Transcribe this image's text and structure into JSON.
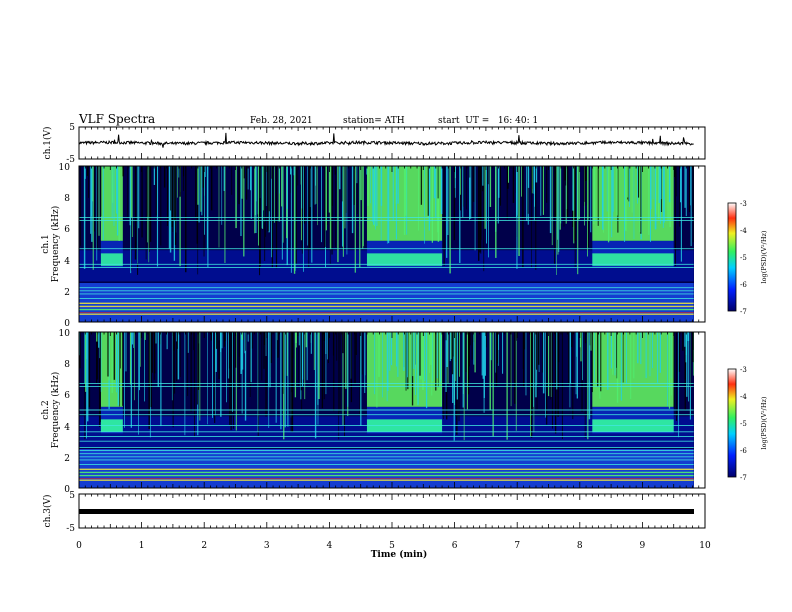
{
  "header": {
    "title": "VLF Spectra",
    "date": "Feb. 28, 2021",
    "station": "station= ATH",
    "start_ut": "start  UT =   16: 40: 1"
  },
  "chart_data": [
    {
      "id": "ch1-waveform",
      "type": "line",
      "ylabel": "ch.1(V)",
      "ylim": [
        -5,
        5
      ],
      "yticks": [
        "5",
        "-5"
      ],
      "xlim": [
        0,
        10
      ],
      "note": "broadband waveform trace near 0 V"
    },
    {
      "id": "ch1-spectrogram",
      "type": "heatmap",
      "ylabel": "ch.1 Frequency (kHz)",
      "ylabel_lines": [
        "ch.1",
        "Frequency (kHz)"
      ],
      "ylim": [
        0,
        10
      ],
      "yticks": [
        "0",
        "2",
        "4",
        "6",
        "8",
        "10"
      ],
      "xlim": [
        0,
        10
      ],
      "colorbar": {
        "label": "log(PSD)(V²/Hz)",
        "range": [
          -7,
          -3
        ],
        "ticks": [
          "-3",
          "-4",
          "-5",
          "-6",
          "-7"
        ]
      },
      "hiss_bursts_min": [
        [
          0.35,
          0.7
        ],
        [
          4.6,
          5.8
        ],
        [
          8.2,
          9.5
        ]
      ],
      "band_lines_khz": [
        0.5,
        0.8,
        1.0,
        1.2,
        1.5,
        1.8,
        2.0,
        2.2,
        3.5,
        3.7,
        4.7,
        6.5,
        6.7
      ]
    },
    {
      "id": "ch2-spectrogram",
      "type": "heatmap",
      "ylabel": "ch.2 Frequency (kHz)",
      "ylabel_lines": [
        "ch.2",
        "Frequency (kHz)"
      ],
      "ylim": [
        0,
        10
      ],
      "yticks": [
        "0",
        "2",
        "4",
        "6",
        "8",
        "10"
      ],
      "xlim": [
        0,
        10
      ],
      "colorbar": {
        "label": "log(PSD)(V²/Hz)",
        "range": [
          -7,
          -3
        ],
        "ticks": [
          "-3",
          "-4",
          "-5",
          "-6",
          "-7"
        ]
      },
      "hiss_bursts_min": [
        [
          0.35,
          0.7
        ],
        [
          4.6,
          5.8
        ],
        [
          8.2,
          9.5
        ]
      ],
      "band_lines_khz": [
        0.5,
        0.8,
        1.0,
        1.2,
        1.5,
        1.8,
        2.0,
        2.2,
        2.4,
        2.6,
        3.0,
        3.3,
        3.6,
        4.0,
        4.7,
        5.0,
        6.5,
        6.7
      ]
    },
    {
      "id": "ch3-waveform",
      "type": "line",
      "ylabel": "ch.3(V)",
      "ylim": [
        -5,
        5
      ],
      "yticks": [
        "5",
        "-5"
      ],
      "xlim": [
        0,
        10
      ],
      "note": "flat thick trace near 0 V"
    }
  ],
  "x_axis": {
    "label": "Time (min)",
    "ticks": [
      "0",
      "1",
      "2",
      "3",
      "4",
      "5",
      "6",
      "7",
      "8",
      "9",
      "10"
    ]
  },
  "colors": {
    "background": "#000000",
    "low": "#00004a",
    "mid_blue": "#1030e0",
    "cyan": "#30e0e8",
    "green": "#50f070",
    "yellow": "#f0f040",
    "red": "#e02020"
  }
}
